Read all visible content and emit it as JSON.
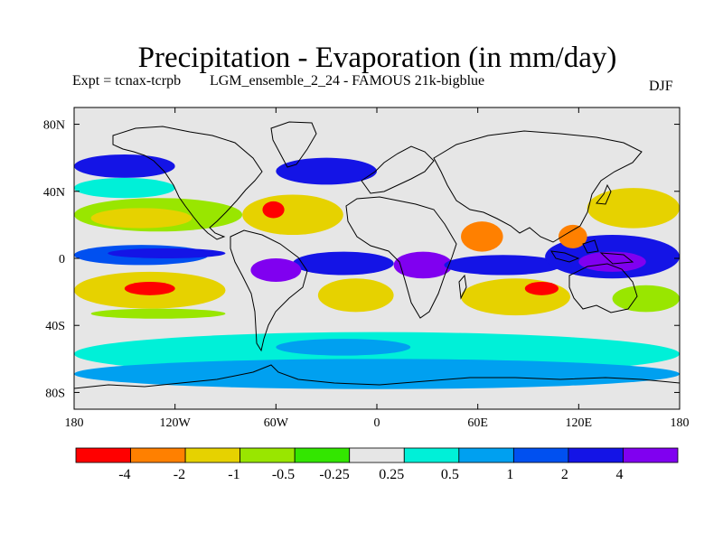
{
  "title": "Precipitation - Evaporation (in mm/day)",
  "experiment": "Expt = tcnax-tcrpb",
  "ensemble": "LGM_ensemble_2_24 - FAMOUS 21k-bigblue",
  "season": "DJF",
  "chart_data": {
    "type": "heatmap",
    "title": "Precipitation - Evaporation (in mm/day)",
    "projection": "cylindrical equidistant",
    "xlim": [
      -180,
      180
    ],
    "ylim": [
      -90,
      90
    ],
    "x_ticks": [
      {
        "value": -180,
        "label": "180"
      },
      {
        "value": -120,
        "label": "120W"
      },
      {
        "value": -60,
        "label": "60W"
      },
      {
        "value": 0,
        "label": "0"
      },
      {
        "value": 60,
        "label": "60E"
      },
      {
        "value": 120,
        "label": "120E"
      },
      {
        "value": 180,
        "label": "180"
      }
    ],
    "y_ticks": [
      {
        "value": 80,
        "label": "80N"
      },
      {
        "value": 40,
        "label": "40N"
      },
      {
        "value": 0,
        "label": "0"
      },
      {
        "value": -40,
        "label": "40S"
      },
      {
        "value": -80,
        "label": "80S"
      }
    ],
    "colorbar": {
      "colors": [
        "#ff0000",
        "#ff8000",
        "#e6d200",
        "#99e600",
        "#33e600",
        "#e6e6e6",
        "#00f0d8",
        "#00a0f0",
        "#0050f0",
        "#1414e6",
        "#8000f0"
      ],
      "levels": [
        "-4",
        "-2",
        "-1",
        "-0.5",
        "-0.25",
        "0.25",
        "0.5",
        "1",
        "2",
        "4"
      ]
    },
    "regions": [
      {
        "name": "Southern Ocean band",
        "lon": [
          -180,
          180
        ],
        "lat": [
          -70,
          -44
        ],
        "class": 6
      },
      {
        "name": "Southern high latitudes",
        "lon": [
          -180,
          180
        ],
        "lat": [
          -78,
          -60
        ],
        "class": 7
      },
      {
        "name": "South Atlantic blue",
        "lon": [
          -60,
          20
        ],
        "lat": [
          -58,
          -48
        ],
        "class": 7
      },
      {
        "name": "Subtropical North Pacific",
        "lon": [
          -180,
          -80
        ],
        "lat": [
          16,
          36
        ],
        "class": 3
      },
      {
        "name": "North Pacific deficit",
        "lon": [
          -170,
          -110
        ],
        "lat": [
          18,
          30
        ],
        "class": 2
      },
      {
        "name": "North Pacific storm track",
        "lon": [
          -180,
          -120
        ],
        "lat": [
          48,
          62
        ],
        "class": 9
      },
      {
        "name": "North Pacific margin",
        "lon": [
          -180,
          -120
        ],
        "lat": [
          36,
          48
        ],
        "class": 6
      },
      {
        "name": "Pacific equatorial band",
        "lon": [
          -180,
          -100
        ],
        "lat": [
          -4,
          8
        ],
        "class": 8
      },
      {
        "name": "Pacific ITCZ",
        "lon": [
          -160,
          -90
        ],
        "lat": [
          0,
          6
        ],
        "class": 9
      },
      {
        "name": "South Pacific subtropics",
        "lon": [
          -180,
          -90
        ],
        "lat": [
          -30,
          -8
        ],
        "class": 2
      },
      {
        "name": "South Pacific deficit core",
        "lon": [
          -150,
          -120
        ],
        "lat": [
          -22,
          -14
        ],
        "class": 0
      },
      {
        "name": "South Pacific yellow",
        "lon": [
          -170,
          -90
        ],
        "lat": [
          -36,
          -30
        ],
        "class": 3
      },
      {
        "name": "North Atlantic subtropics",
        "lon": [
          -80,
          -20
        ],
        "lat": [
          14,
          38
        ],
        "class": 2
      },
      {
        "name": "North Atlantic deficit core",
        "lon": [
          -68,
          -55
        ],
        "lat": [
          24,
          34
        ],
        "class": 0
      },
      {
        "name": "Atlantic ITCZ",
        "lon": [
          -50,
          10
        ],
        "lat": [
          -10,
          4
        ],
        "class": 9
      },
      {
        "name": "Amazon wet",
        "lon": [
          -75,
          -45
        ],
        "lat": [
          -14,
          0
        ],
        "class": 10
      },
      {
        "name": "South Atlantic subtropics",
        "lon": [
          -35,
          10
        ],
        "lat": [
          -32,
          -12
        ],
        "class": 2
      },
      {
        "name": "North Atlantic storm track",
        "lon": [
          -60,
          0
        ],
        "lat": [
          44,
          60
        ],
        "class": 9
      },
      {
        "name": "Equatorial Africa wet",
        "lon": [
          10,
          45
        ],
        "lat": [
          -12,
          4
        ],
        "class": 10
      },
      {
        "name": "Arabian Sea deficit",
        "lon": [
          50,
          75
        ],
        "lat": [
          4,
          22
        ],
        "class": 1
      },
      {
        "name": "Indian Ocean ITCZ",
        "lon": [
          40,
          110
        ],
        "lat": [
          -10,
          2
        ],
        "class": 9
      },
      {
        "name": "Indian Ocean subtropics",
        "lon": [
          50,
          115
        ],
        "lat": [
          -34,
          -12
        ],
        "class": 2
      },
      {
        "name": "Indian Ocean deficit core",
        "lon": [
          88,
          108
        ],
        "lat": [
          -22,
          -14
        ],
        "class": 0
      },
      {
        "name": "Warm pool",
        "lon": [
          100,
          180
        ],
        "lat": [
          -12,
          14
        ],
        "class": 9
      },
      {
        "name": "West Pacific wet core",
        "lon": [
          120,
          160
        ],
        "lat": [
          -8,
          4
        ],
        "class": 10
      },
      {
        "name": "Northwest Pacific subtropics",
        "lon": [
          125,
          180
        ],
        "lat": [
          18,
          42
        ],
        "class": 2
      },
      {
        "name": "South China Sea deficit",
        "lon": [
          108,
          125
        ],
        "lat": [
          6,
          20
        ],
        "class": 1
      },
      {
        "name": "Southwest Pacific subtropics",
        "lon": [
          140,
          180
        ],
        "lat": [
          -32,
          -16
        ],
        "class": 3
      }
    ]
  }
}
